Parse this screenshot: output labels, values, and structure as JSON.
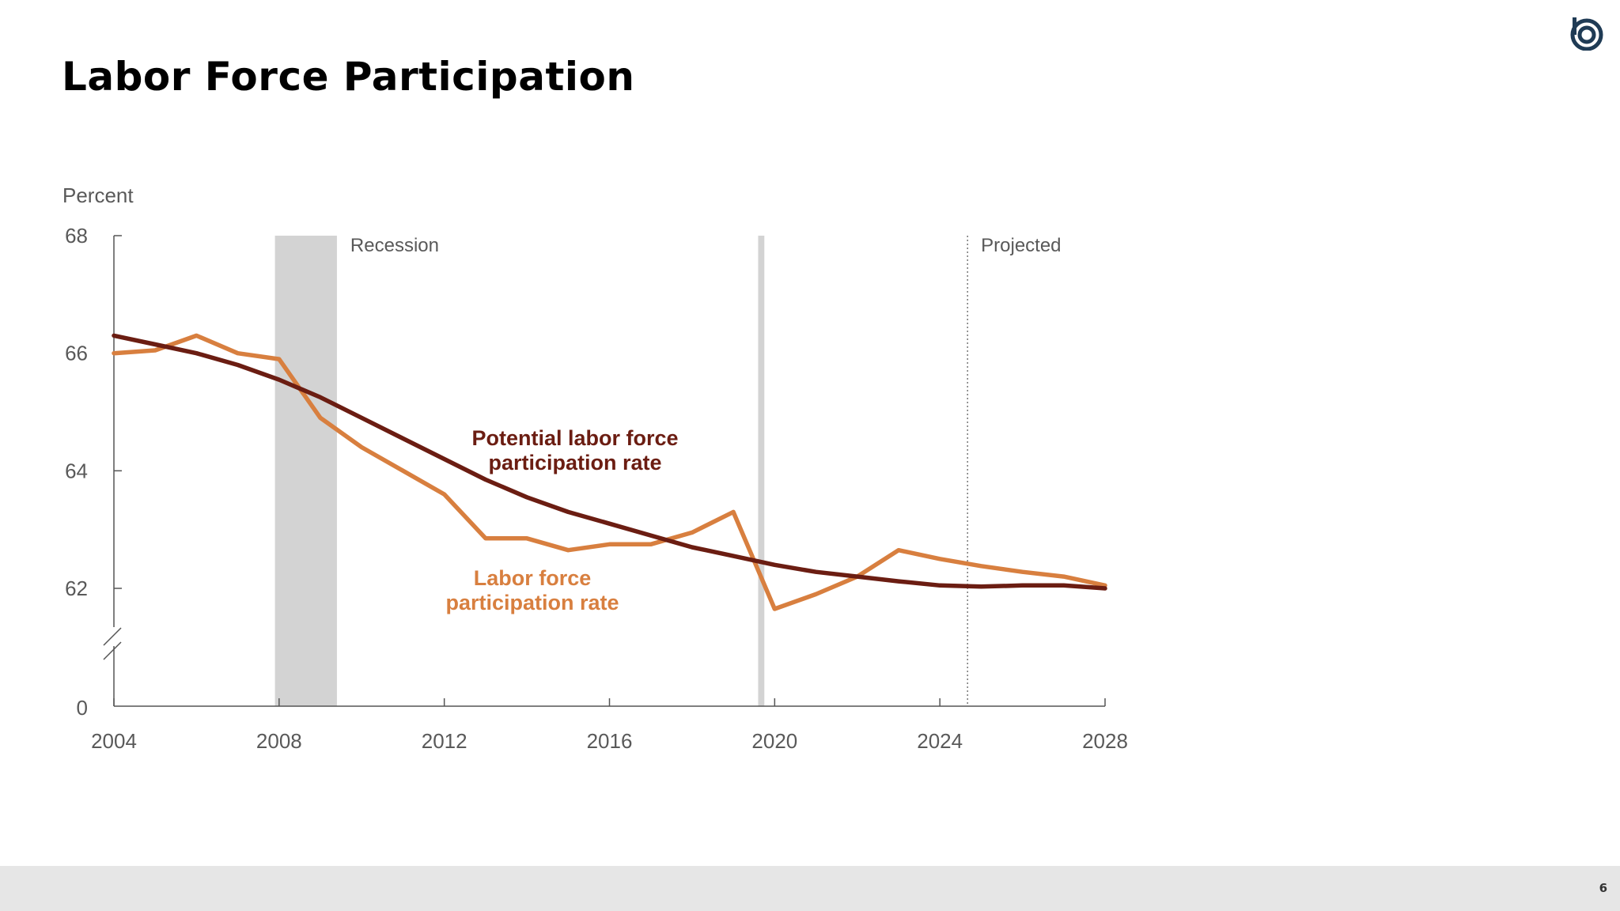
{
  "slide": {
    "title": "Labor Force Participation",
    "page_number": "6"
  },
  "logo": {
    "icon": "circular-b-logo-icon",
    "color": "#1f3b55"
  },
  "chart_data": {
    "type": "line",
    "ylabel": "Percent",
    "x_ticks": [
      2004,
      2008,
      2012,
      2016,
      2020,
      2024,
      2028
    ],
    "y_ticks": [
      62,
      64,
      66,
      68
    ],
    "y_break_tick": 0,
    "ylim": [
      61,
      68
    ],
    "xlim": [
      2004,
      2028
    ],
    "axis_break": true,
    "grid": false,
    "recessions": [
      {
        "start": 2007.9,
        "end": 2009.4,
        "label": "Recession"
      },
      {
        "start": 2019.6,
        "end": 2019.75,
        "label": ""
      }
    ],
    "projection": {
      "start": 2024.67,
      "label": "Projected"
    },
    "series": [
      {
        "name": "Potential labor force participation rate",
        "color": "#6b1d12",
        "x": [
          2004,
          2005,
          2006,
          2007,
          2008,
          2009,
          2010,
          2011,
          2012,
          2013,
          2014,
          2015,
          2016,
          2017,
          2018,
          2019,
          2020,
          2021,
          2022,
          2023,
          2024,
          2025,
          2026,
          2027,
          2028
        ],
        "y": [
          66.3,
          66.15,
          66.0,
          65.8,
          65.55,
          65.25,
          64.9,
          64.55,
          64.2,
          63.85,
          63.55,
          63.3,
          63.1,
          62.9,
          62.7,
          62.55,
          62.4,
          62.28,
          62.2,
          62.12,
          62.05,
          62.03,
          62.05,
          62.05,
          62.0
        ]
      },
      {
        "name": "Labor force participation rate",
        "color": "#d87f3f",
        "x": [
          2004,
          2005,
          2006,
          2007,
          2008,
          2009,
          2010,
          2011,
          2012,
          2013,
          2014,
          2015,
          2016,
          2017,
          2018,
          2019,
          2020,
          2021,
          2022,
          2023,
          2024,
          2025,
          2026,
          2027,
          2028
        ],
        "y": [
          66.0,
          66.05,
          66.3,
          66.0,
          65.9,
          64.9,
          64.4,
          64.0,
          63.6,
          62.85,
          62.85,
          62.65,
          62.75,
          62.75,
          62.95,
          63.3,
          61.65,
          61.9,
          62.2,
          62.65,
          62.5,
          62.38,
          62.28,
          62.2,
          62.05
        ]
      }
    ]
  }
}
